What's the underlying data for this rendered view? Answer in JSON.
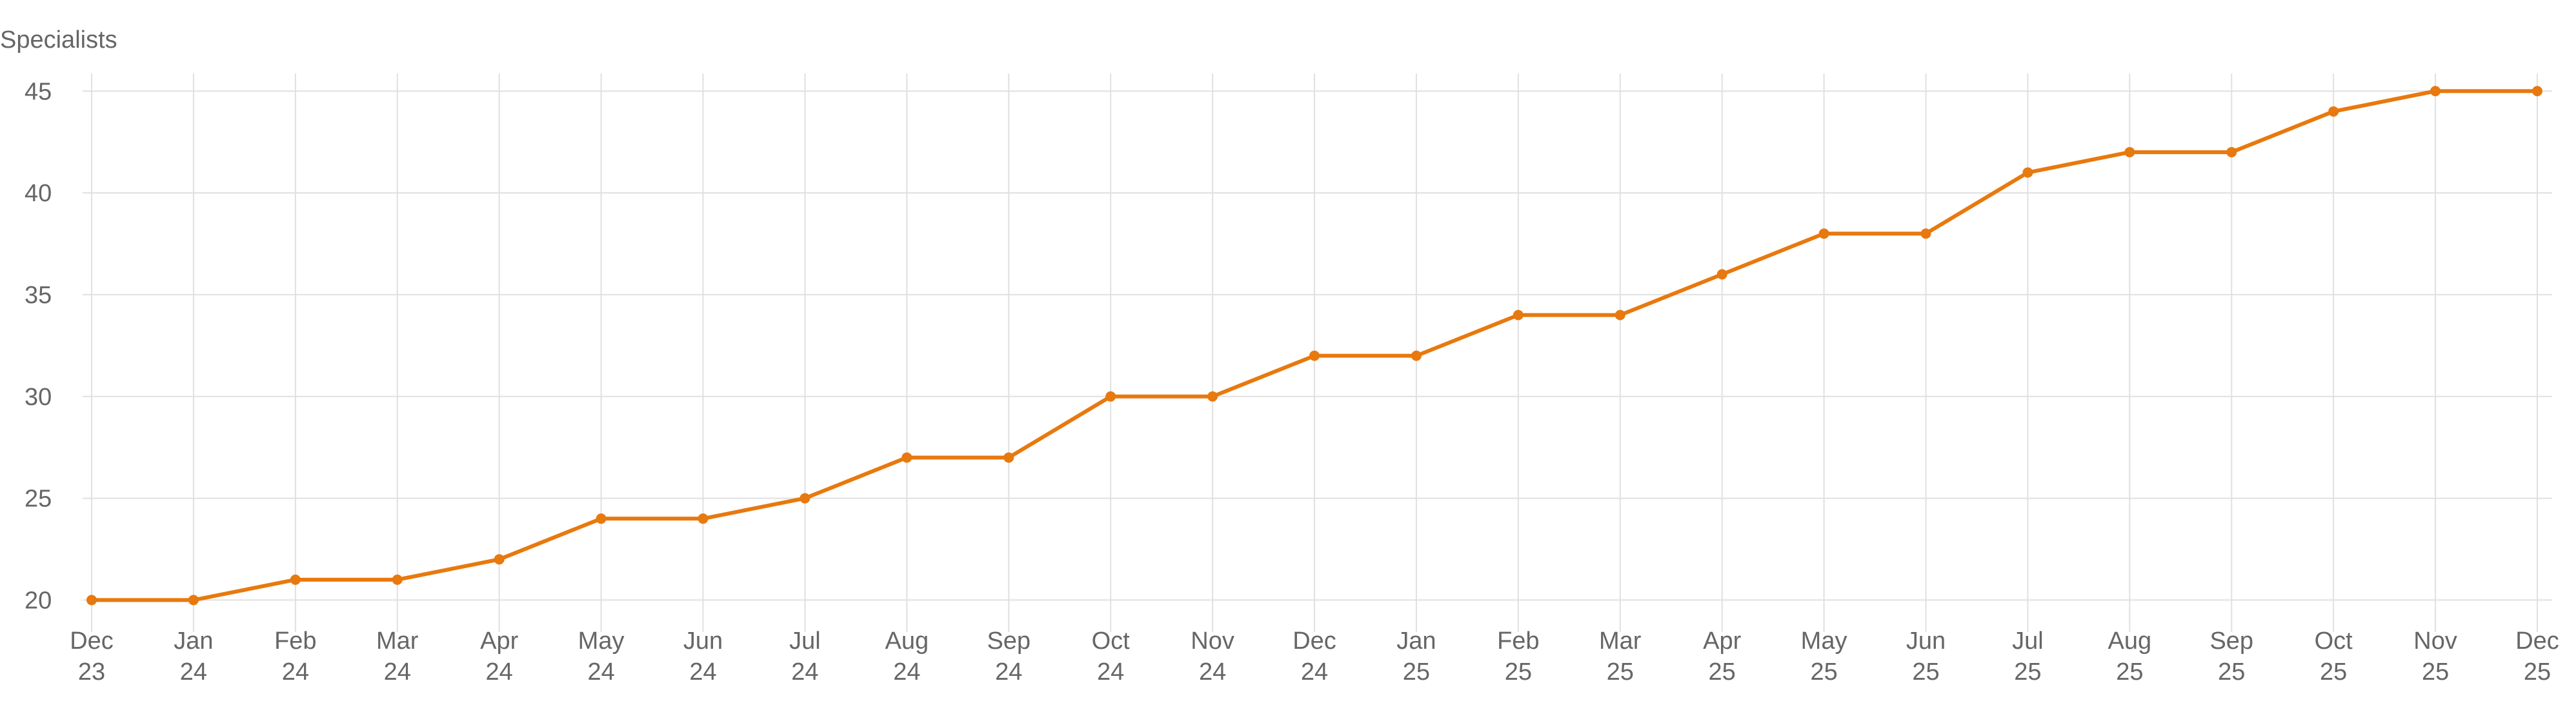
{
  "chart_data": {
    "type": "line",
    "ylabel": "Specialists",
    "ylim": [
      19,
      45.8
    ],
    "yticks": [
      20,
      25,
      30,
      35,
      40,
      45
    ],
    "grid": true,
    "categories": [
      [
        "Dec",
        "23"
      ],
      [
        "Jan",
        "24"
      ],
      [
        "Feb",
        "24"
      ],
      [
        "Mar",
        "24"
      ],
      [
        "Apr",
        "24"
      ],
      [
        "May",
        "24"
      ],
      [
        "Jun",
        "24"
      ],
      [
        "Jul",
        "24"
      ],
      [
        "Aug",
        "24"
      ],
      [
        "Sep",
        "24"
      ],
      [
        "Oct",
        "24"
      ],
      [
        "Nov",
        "24"
      ],
      [
        "Dec",
        "24"
      ],
      [
        "Jan",
        "25"
      ],
      [
        "Feb",
        "25"
      ],
      [
        "Mar",
        "25"
      ],
      [
        "Apr",
        "25"
      ],
      [
        "May",
        "25"
      ],
      [
        "Jun",
        "25"
      ],
      [
        "Jul",
        "25"
      ],
      [
        "Aug",
        "25"
      ],
      [
        "Sep",
        "25"
      ],
      [
        "Oct",
        "25"
      ],
      [
        "Nov",
        "25"
      ],
      [
        "Dec",
        "25"
      ]
    ],
    "series": [
      {
        "color": "#e8790e",
        "values": [
          20,
          20,
          21,
          21,
          22,
          24,
          24,
          25,
          27,
          27,
          30,
          30,
          32,
          32,
          34,
          34,
          36,
          38,
          38,
          41,
          42,
          42,
          44,
          45,
          45
        ]
      }
    ]
  }
}
